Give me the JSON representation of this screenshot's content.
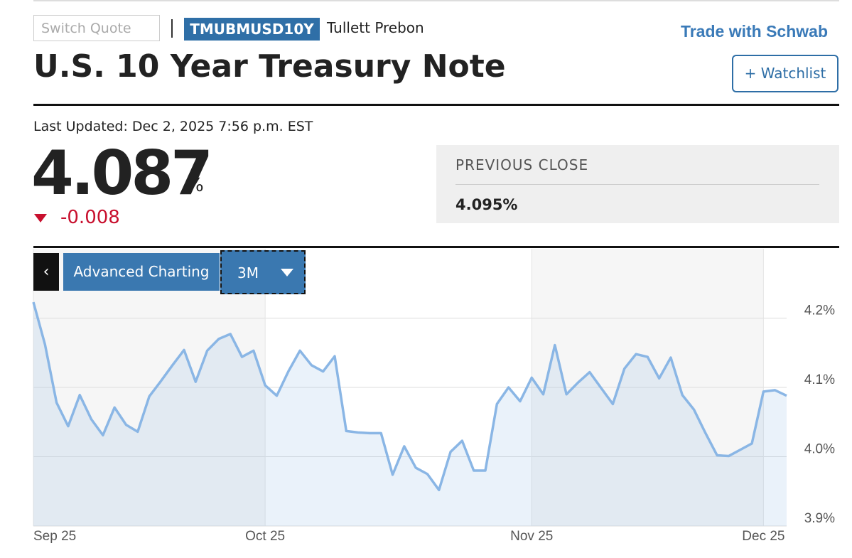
{
  "header": {
    "search_placeholder": "Switch Quote",
    "symbol": "TMUBMUSD10Y",
    "source": "Tullett Prebon",
    "broker_link": "Trade with Schwab",
    "title": "U.S. 10 Year Treasury Note",
    "watchlist": "Watchlist"
  },
  "quote": {
    "last_updated": "Last Updated: Dec 2, 2025 7:56 p.m. EST",
    "price": "4.087",
    "unit": "%",
    "change": "-0.008",
    "previous_close_label": "PREVIOUS CLOSE",
    "previous_close": "4.095%"
  },
  "controls": {
    "advanced_charting": "Advanced Charting",
    "range": "3M"
  },
  "chart_data": {
    "type": "line",
    "categories": [
      "Sep 25",
      null,
      null,
      null,
      null,
      null,
      null,
      null,
      null,
      null,
      null,
      null,
      null,
      null,
      null,
      null,
      null,
      null,
      null,
      null,
      "Oct 25",
      null,
      null,
      null,
      null,
      null,
      null,
      null,
      null,
      null,
      null,
      null,
      null,
      null,
      null,
      null,
      null,
      null,
      null,
      null,
      null,
      null,
      null,
      "Nov 25",
      null,
      null,
      null,
      null,
      null,
      null,
      null,
      null,
      null,
      null,
      null,
      null,
      null,
      null,
      null,
      null,
      null,
      null,
      null,
      "Dec 25",
      null,
      null
    ],
    "values": [
      4.223,
      4.162,
      4.078,
      4.044,
      4.089,
      4.054,
      4.031,
      4.071,
      4.046,
      4.036,
      4.087,
      4.109,
      4.132,
      4.154,
      4.108,
      4.153,
      4.17,
      4.177,
      4.144,
      4.153,
      4.103,
      4.088,
      4.123,
      4.153,
      4.132,
      4.123,
      4.145,
      4.037,
      4.035,
      4.034,
      4.034,
      3.974,
      4.015,
      3.984,
      3.975,
      3.952,
      4.007,
      4.023,
      3.98,
      3.98,
      4.076,
      4.1,
      4.08,
      4.114,
      4.09,
      4.161,
      4.09,
      4.107,
      4.122,
      4.099,
      4.076,
      4.127,
      4.148,
      4.144,
      4.113,
      4.143,
      4.089,
      4.068,
      4.034,
      4.002,
      4.001,
      4.01,
      4.019,
      4.094,
      4.096,
      4.088
    ],
    "color": "#8ab6e5",
    "ylim": [
      3.9,
      4.3
    ],
    "yticks": [
      {
        "value": 3.9,
        "label": "3.9%"
      },
      {
        "value": 4.0,
        "label": "4.0%"
      },
      {
        "value": 4.1,
        "label": "4.1%"
      },
      {
        "value": 4.2,
        "label": "4.2%"
      }
    ],
    "grid": true
  }
}
